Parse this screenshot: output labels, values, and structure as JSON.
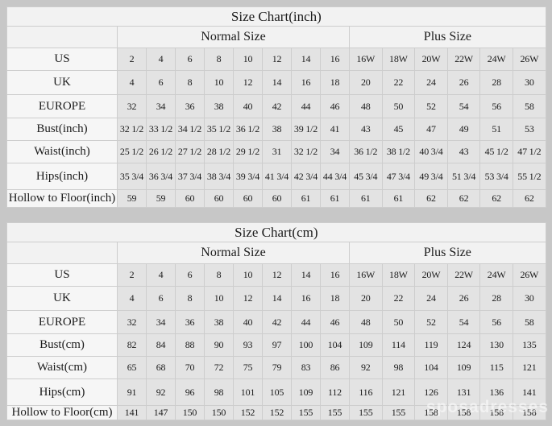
{
  "watermark": {
    "text": "sposadresses"
  },
  "colors": {
    "page_bg": "#c7c7c7",
    "header_bg": "#f2f2f2",
    "label_bg": "#f6f6f6",
    "data_bg": "#e3e3e3",
    "border": "#cdcdcd",
    "text": "#1c1c1c"
  },
  "chart_data": [
    {
      "type": "table",
      "title": "Size Chart(inch)",
      "column_groups": [
        {
          "label": "Normal Size",
          "span": 8
        },
        {
          "label": "Plus Size",
          "span": 6
        }
      ],
      "rows": [
        {
          "label": "US",
          "values": [
            "2",
            "4",
            "6",
            "8",
            "10",
            "12",
            "14",
            "16",
            "16W",
            "18W",
            "20W",
            "22W",
            "24W",
            "26W"
          ]
        },
        {
          "label": "UK",
          "values": [
            "4",
            "6",
            "8",
            "10",
            "12",
            "14",
            "16",
            "18",
            "20",
            "22",
            "24",
            "26",
            "28",
            "30"
          ]
        },
        {
          "label": "EUROPE",
          "values": [
            "32",
            "34",
            "36",
            "38",
            "40",
            "42",
            "44",
            "46",
            "48",
            "50",
            "52",
            "54",
            "56",
            "58"
          ]
        },
        {
          "label": "Bust(inch)",
          "values": [
            "32 1/2",
            "33 1/2",
            "34 1/2",
            "35 1/2",
            "36 1/2",
            "38",
            "39 1/2",
            "41",
            "43",
            "45",
            "47",
            "49",
            "51",
            "53"
          ]
        },
        {
          "label": "Waist(inch)",
          "values": [
            "25 1/2",
            "26 1/2",
            "27 1/2",
            "28 1/2",
            "29 1/2",
            "31",
            "32 1/2",
            "34",
            "36 1/2",
            "38 1/2",
            "40 3/4",
            "43",
            "45 1/2",
            "47 1/2"
          ]
        },
        {
          "label": "Hips(inch)",
          "values": [
            "35 3/4",
            "36 3/4",
            "37 3/4",
            "38 3/4",
            "39 3/4",
            "41 3/4",
            "42 3/4",
            "44 3/4",
            "45 3/4",
            "47 3/4",
            "49 3/4",
            "51 3/4",
            "53 3/4",
            "55 1/2"
          ]
        },
        {
          "label": "Hollow to Floor(inch)",
          "values": [
            "59",
            "59",
            "60",
            "60",
            "60",
            "60",
            "61",
            "61",
            "61",
            "61",
            "62",
            "62",
            "62",
            "62"
          ]
        }
      ]
    },
    {
      "type": "table",
      "title": "Size Chart(cm)",
      "column_groups": [
        {
          "label": "Normal Size",
          "span": 8
        },
        {
          "label": "Plus Size",
          "span": 6
        }
      ],
      "rows": [
        {
          "label": "US",
          "values": [
            "2",
            "4",
            "6",
            "8",
            "10",
            "12",
            "14",
            "16",
            "16W",
            "18W",
            "20W",
            "22W",
            "24W",
            "26W"
          ]
        },
        {
          "label": "UK",
          "values": [
            "4",
            "6",
            "8",
            "10",
            "12",
            "14",
            "16",
            "18",
            "20",
            "22",
            "24",
            "26",
            "28",
            "30"
          ]
        },
        {
          "label": "EUROPE",
          "values": [
            "32",
            "34",
            "36",
            "38",
            "40",
            "42",
            "44",
            "46",
            "48",
            "50",
            "52",
            "54",
            "56",
            "58"
          ]
        },
        {
          "label": "Bust(cm)",
          "values": [
            "82",
            "84",
            "88",
            "90",
            "93",
            "97",
            "100",
            "104",
            "109",
            "114",
            "119",
            "124",
            "130",
            "135"
          ]
        },
        {
          "label": "Waist(cm)",
          "values": [
            "65",
            "68",
            "70",
            "72",
            "75",
            "79",
            "83",
            "86",
            "92",
            "98",
            "104",
            "109",
            "115",
            "121"
          ]
        },
        {
          "label": "Hips(cm)",
          "values": [
            "91",
            "92",
            "96",
            "98",
            "101",
            "105",
            "109",
            "112",
            "116",
            "121",
            "126",
            "131",
            "136",
            "141"
          ]
        },
        {
          "label": "Hollow to Floor(cm)",
          "values": [
            "141",
            "147",
            "150",
            "150",
            "152",
            "152",
            "155",
            "155",
            "155",
            "155",
            "158",
            "158",
            "158",
            "158"
          ]
        }
      ]
    }
  ]
}
